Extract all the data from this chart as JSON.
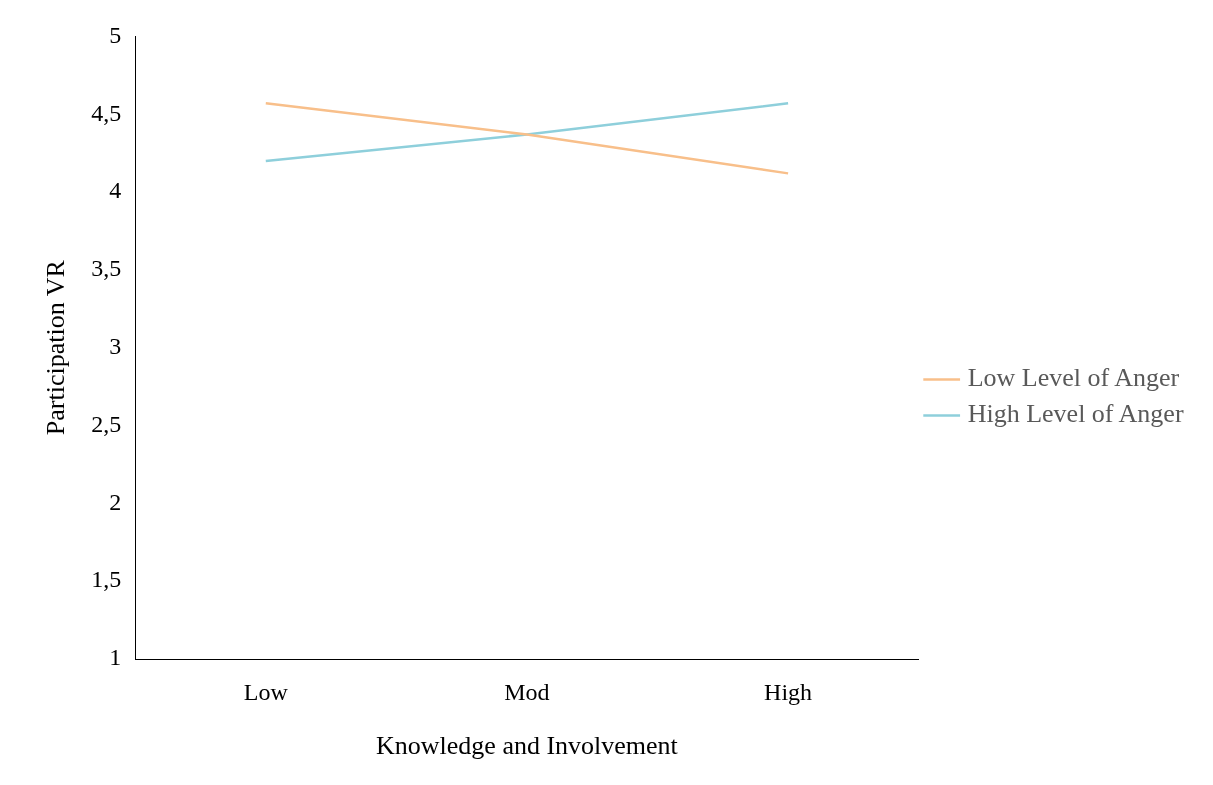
{
  "chart_data": {
    "type": "line",
    "xlabel": "Knowledge and Involvement",
    "ylabel": "Participation VR",
    "categories": [
      "Low",
      "Mod",
      "High"
    ],
    "series": [
      {
        "name": "Low Level of Anger",
        "color": "#f8bf8a",
        "values": [
          4.57,
          4.37,
          4.12
        ]
      },
      {
        "name": "High Level of Anger",
        "color": "#8ecfdb",
        "values": [
          4.2,
          4.37,
          4.57
        ]
      }
    ],
    "ylim": [
      1,
      5
    ],
    "yticks": [
      1,
      {
        "value": 1.5,
        "label": "1,5"
      },
      2,
      {
        "value": 2.5,
        "label": "2,5"
      },
      3,
      {
        "value": 3.5,
        "label": "3,5"
      },
      4,
      {
        "value": 4.5,
        "label": "4,5"
      },
      5
    ],
    "grid": false,
    "legend": "right",
    "marker": "none",
    "line_style": "solid"
  }
}
